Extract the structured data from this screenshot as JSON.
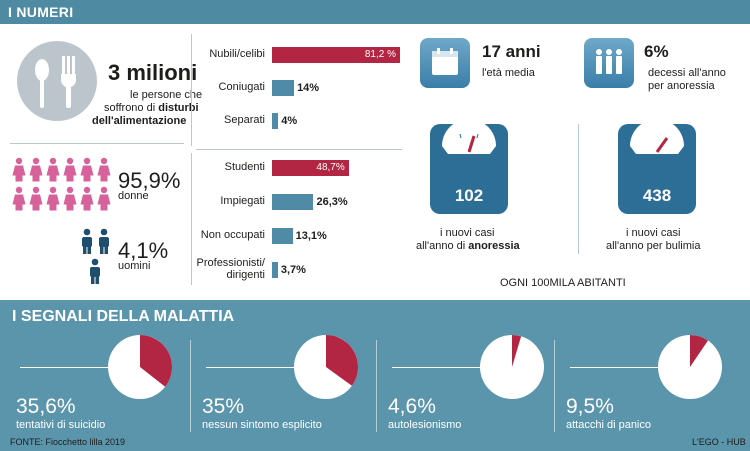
{
  "header": {
    "title": "I NUMERI"
  },
  "people": {
    "value": "3 milioni",
    "text1": "le persone che",
    "text2_pre": "soffrono di ",
    "text2_bold": "disturbi",
    "text3": "dell'alimentazione"
  },
  "gender": {
    "women_value": "95,9%",
    "women_label": "donne",
    "men_value": "4,1%",
    "men_label": "uomini"
  },
  "chart_data": [
    {
      "type": "bar",
      "title": "",
      "categories": [
        "Nubili/celibi",
        "Coniugati",
        "Separati"
      ],
      "values": [
        81.2,
        14,
        4
      ],
      "labels": [
        "81,2 %",
        "14%",
        "4%"
      ],
      "colors": [
        "#b22643",
        "#4f8aa6",
        "#4f8aa6"
      ]
    },
    {
      "type": "bar",
      "title": "",
      "categories": [
        "Studenti",
        "Impiegati",
        "Non occupati",
        "Professionisti/ dirigenti"
      ],
      "category_lines": [
        [
          "Studenti"
        ],
        [
          "Impiegati"
        ],
        [
          "Non occupati"
        ],
        [
          "Professionisti/",
          "dirigenti"
        ]
      ],
      "values": [
        48.7,
        26.3,
        13.1,
        3.7
      ],
      "labels": [
        "48,7%",
        "26,3%",
        "13,1%",
        "3,7%"
      ],
      "colors": [
        "#b22643",
        "#4f8aa6",
        "#4f8aa6",
        "#4f8aa6"
      ]
    },
    {
      "type": "pie",
      "title": "I SEGNALI DELLA MALATTIA",
      "categories": [
        "tentativi di suicidio",
        "nessun sintomo esplicito",
        "autolesionismo",
        "attacchi di panico"
      ],
      "values": [
        35.6,
        35,
        4.6,
        9.5
      ],
      "labels": [
        "35,6%",
        "35%",
        "4,6%",
        "9,5%"
      ]
    }
  ],
  "age": {
    "value": "17 anni",
    "label": "l'età media"
  },
  "deaths": {
    "value": "6%",
    "label1": "decessi all'anno",
    "label2": "per anoressia"
  },
  "anorexia": {
    "value": "102",
    "label1": "i nuovi casi",
    "label2_pre": "all'anno di ",
    "label2_bold": "anoressia"
  },
  "bulimia": {
    "value": "438",
    "label1": "i nuovi casi",
    "label2": "all'anno per bulimia"
  },
  "per_label": "OGNI 100MILA ABITANTI",
  "signs_title": "I SEGNALI DELLA MALATTIA",
  "footer": {
    "source": "FONTE: Fiocchetto lilla 2019",
    "credit": "L'EGO - HUB"
  },
  "colors": {
    "accent_red": "#b22643",
    "accent_blue": "#4f8aa6",
    "panel": "#5b95ab"
  }
}
